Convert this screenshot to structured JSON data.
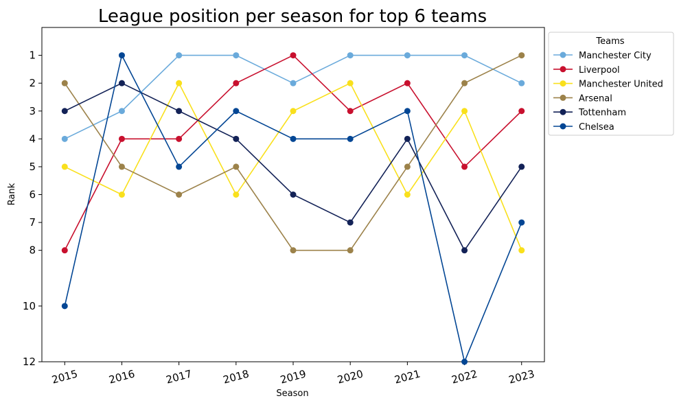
{
  "chart_data": {
    "type": "line",
    "title": "League position per season for top 6 teams",
    "xlabel": "Season",
    "ylabel": "Rank",
    "x": [
      2015,
      2016,
      2017,
      2018,
      2019,
      2020,
      2021,
      2022,
      2023
    ],
    "x_tick_labels": [
      "2015",
      "2016",
      "2017",
      "2018",
      "2019",
      "2020",
      "2021",
      "2022",
      "2023"
    ],
    "y_ticks": [
      1,
      2,
      3,
      4,
      5,
      6,
      7,
      8,
      10,
      12
    ],
    "y_tick_labels": [
      "1",
      "2",
      "3",
      "4",
      "5",
      "6",
      "7",
      "8",
      "10",
      "12"
    ],
    "ylim": [
      12,
      0
    ],
    "y_inverted": true,
    "grid": false,
    "legend_title": "Teams",
    "legend_position": "outside-top-right",
    "series": [
      {
        "name": "Manchester City",
        "color": "#6aaadb",
        "values": [
          4,
          3,
          1,
          1,
          2,
          1,
          1,
          1,
          2
        ]
      },
      {
        "name": "Liverpool",
        "color": "#c8102e",
        "values": [
          8,
          4,
          4,
          2,
          1,
          3,
          2,
          5,
          3
        ]
      },
      {
        "name": "Manchester United",
        "color": "#f9e01c",
        "values": [
          5,
          6,
          2,
          6,
          3,
          2,
          6,
          3,
          8
        ]
      },
      {
        "name": "Arsenal",
        "color": "#9c824a",
        "values": [
          2,
          5,
          6,
          5,
          8,
          8,
          5,
          2,
          1
        ]
      },
      {
        "name": "Tottenham",
        "color": "#132257",
        "values": [
          3,
          2,
          3,
          4,
          6,
          7,
          4,
          8,
          5
        ]
      },
      {
        "name": "Chelsea",
        "color": "#034694",
        "values": [
          10,
          1,
          5,
          3,
          4,
          4,
          3,
          12,
          7
        ]
      }
    ]
  }
}
